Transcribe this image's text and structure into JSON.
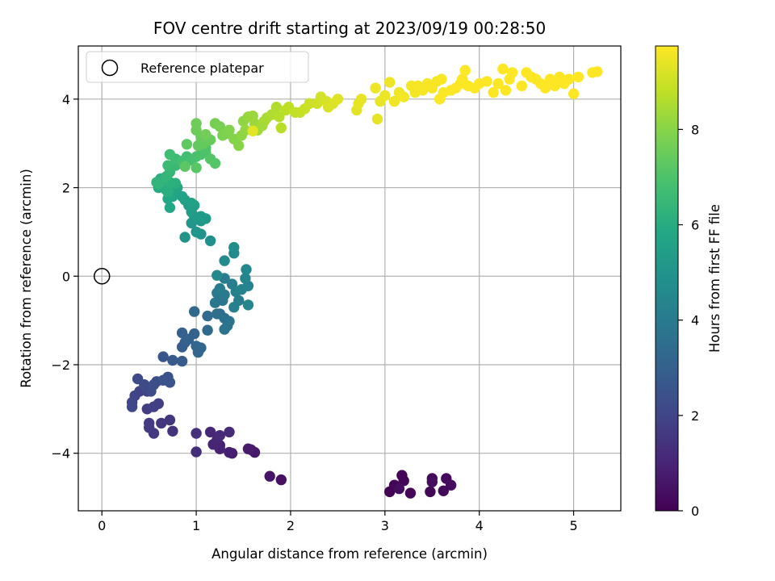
{
  "chart_data": {
    "type": "scatter",
    "title": "FOV centre drift starting at 2023/09/19 00:28:50",
    "xlabel": "Angular distance from reference (arcmin)",
    "ylabel": "Rotation from reference (arcmin)",
    "xlim": [
      -0.25,
      5.5
    ],
    "ylim": [
      -5.3,
      5.2
    ],
    "xticks": [
      0,
      1,
      2,
      3,
      4,
      5
    ],
    "yticks": [
      -4,
      -2,
      0,
      2,
      4
    ],
    "grid": true,
    "legend": {
      "placement": "top-left",
      "entries": [
        "Reference platepar"
      ]
    },
    "reference_point": {
      "x": 0,
      "y": 0,
      "marker": "open-circle"
    },
    "colorbar": {
      "label": "Hours from first FF file",
      "colormap": "viridis",
      "range": [
        0,
        9.75
      ],
      "ticks": [
        0,
        2,
        4,
        6,
        8
      ]
    },
    "points": [
      [
        3.05,
        -4.87,
        0.02
      ],
      [
        3.1,
        -4.72,
        0.05
      ],
      [
        3.18,
        -4.5,
        0.08
      ],
      [
        3.2,
        -4.62,
        0.11
      ],
      [
        3.27,
        -4.9,
        0.14
      ],
      [
        3.48,
        -4.87,
        0.17
      ],
      [
        3.5,
        -4.57,
        0.2
      ],
      [
        3.62,
        -4.85,
        0.23
      ],
      [
        3.65,
        -4.57,
        0.26
      ],
      [
        3.7,
        -4.72,
        0.29
      ],
      [
        3.15,
        -4.8,
        0.32
      ],
      [
        3.5,
        -4.65,
        0.35
      ],
      [
        1.9,
        -4.6,
        0.45
      ],
      [
        1.78,
        -4.52,
        0.55
      ],
      [
        1.62,
        -3.98,
        0.65
      ],
      [
        1.58,
        -3.92,
        0.7
      ],
      [
        1.55,
        -3.9,
        0.75
      ],
      [
        1.38,
        -4.0,
        0.8
      ],
      [
        1.35,
        -3.98,
        0.85
      ],
      [
        1.25,
        -3.82,
        0.9
      ],
      [
        1.25,
        -3.9,
        0.95
      ],
      [
        1.22,
        -3.7,
        1.0
      ],
      [
        1.18,
        -3.8,
        1.05
      ],
      [
        1.15,
        -3.52,
        1.1
      ],
      [
        1.25,
        -3.6,
        1.15
      ],
      [
        1.35,
        -3.52,
        1.2
      ],
      [
        1.0,
        -3.97,
        1.25
      ],
      [
        1.0,
        -3.55,
        1.3
      ],
      [
        0.75,
        -3.5,
        1.4
      ],
      [
        0.72,
        -3.25,
        1.5
      ],
      [
        0.63,
        -3.32,
        1.55
      ],
      [
        0.55,
        -3.55,
        1.6
      ],
      [
        0.5,
        -3.42,
        1.65
      ],
      [
        0.5,
        -3.32,
        1.7
      ],
      [
        0.48,
        -3.0,
        1.75
      ],
      [
        0.6,
        -2.88,
        1.8
      ],
      [
        0.55,
        -2.95,
        1.85
      ],
      [
        0.48,
        -2.6,
        1.9
      ],
      [
        0.4,
        -2.6,
        1.95
      ],
      [
        0.35,
        -2.7,
        2.0
      ],
      [
        0.32,
        -2.85,
        2.05
      ],
      [
        0.32,
        -2.95,
        2.1
      ],
      [
        0.38,
        -2.32,
        2.15
      ],
      [
        0.45,
        -2.45,
        2.2
      ],
      [
        0.52,
        -2.6,
        2.25
      ],
      [
        0.55,
        -2.45,
        2.3
      ],
      [
        0.58,
        -2.38,
        2.35
      ],
      [
        0.7,
        -2.28,
        2.4
      ],
      [
        0.72,
        -2.4,
        2.45
      ],
      [
        0.65,
        -2.35,
        2.5
      ],
      [
        0.65,
        -1.82,
        2.6
      ],
      [
        0.75,
        -1.9,
        2.7
      ],
      [
        0.85,
        -1.92,
        2.8
      ],
      [
        0.85,
        -1.6,
        2.9
      ],
      [
        0.88,
        -1.5,
        2.95
      ],
      [
        0.85,
        -1.28,
        3.0
      ],
      [
        0.92,
        -1.42,
        3.05
      ],
      [
        0.98,
        -1.3,
        3.1
      ],
      [
        1.0,
        -1.58,
        3.15
      ],
      [
        1.02,
        -1.72,
        3.2
      ],
      [
        1.05,
        -1.62,
        3.25
      ],
      [
        0.98,
        -0.8,
        3.3
      ],
      [
        1.12,
        -0.9,
        3.35
      ],
      [
        1.12,
        -1.22,
        3.4
      ],
      [
        1.25,
        -0.85,
        3.5
      ],
      [
        1.22,
        -0.85,
        3.55
      ],
      [
        1.3,
        -0.95,
        3.6
      ],
      [
        1.35,
        -1.02,
        3.65
      ],
      [
        1.33,
        -1.12,
        3.7
      ],
      [
        1.3,
        -1.2,
        3.75
      ],
      [
        1.28,
        -0.55,
        3.8
      ],
      [
        1.2,
        -0.6,
        3.85
      ],
      [
        1.22,
        -0.38,
        3.9
      ],
      [
        1.3,
        -0.42,
        3.95
      ],
      [
        1.25,
        -0.28,
        4.0
      ],
      [
        1.3,
        -0.05,
        4.05
      ],
      [
        1.38,
        -0.18,
        4.1
      ],
      [
        1.45,
        -0.55,
        4.15
      ],
      [
        1.4,
        -0.7,
        4.2
      ],
      [
        1.42,
        -0.35,
        4.25
      ],
      [
        1.48,
        -0.3,
        4.3
      ],
      [
        1.55,
        -0.22,
        4.35
      ],
      [
        1.52,
        -0.05,
        4.4
      ],
      [
        1.55,
        -0.65,
        4.45
      ],
      [
        1.53,
        0.15,
        4.5
      ],
      [
        1.22,
        0.02,
        4.55
      ],
      [
        1.3,
        0.35,
        4.6
      ],
      [
        1.4,
        0.52,
        4.65
      ],
      [
        1.4,
        0.65,
        4.7
      ],
      [
        1.15,
        0.8,
        4.8
      ],
      [
        1.05,
        0.95,
        4.9
      ],
      [
        0.88,
        0.88,
        4.95
      ],
      [
        1.0,
        1.0,
        5.0
      ],
      [
        0.95,
        1.2,
        5.1
      ],
      [
        1.05,
        1.25,
        5.15
      ],
      [
        1.1,
        1.3,
        5.2
      ],
      [
        0.98,
        1.35,
        5.25
      ],
      [
        1.05,
        1.35,
        5.3
      ],
      [
        0.95,
        1.45,
        5.35
      ],
      [
        0.92,
        1.6,
        5.4
      ],
      [
        0.88,
        1.72,
        5.45
      ],
      [
        0.98,
        1.6,
        5.5
      ],
      [
        0.95,
        1.65,
        5.55
      ],
      [
        0.85,
        1.8,
        5.6
      ],
      [
        0.78,
        1.92,
        5.65
      ],
      [
        0.8,
        2.0,
        5.7
      ],
      [
        0.75,
        1.8,
        5.75
      ],
      [
        0.72,
        1.55,
        5.8
      ],
      [
        0.7,
        1.75,
        5.85
      ],
      [
        0.68,
        1.95,
        5.9
      ],
      [
        0.65,
        2.05,
        5.95
      ],
      [
        0.6,
        2.0,
        6.0
      ],
      [
        0.62,
        2.2,
        6.05
      ],
      [
        0.7,
        1.9,
        6.1
      ],
      [
        0.78,
        2.1,
        6.15
      ],
      [
        0.72,
        2.12,
        6.2
      ],
      [
        0.65,
        2.15,
        6.25
      ],
      [
        0.6,
        2.08,
        6.3
      ],
      [
        0.58,
        2.12,
        6.35
      ],
      [
        0.68,
        2.25,
        6.4
      ],
      [
        0.72,
        2.35,
        6.45
      ],
      [
        0.78,
        2.5,
        6.5
      ],
      [
        0.82,
        2.55,
        6.55
      ],
      [
        0.7,
        2.5,
        6.6
      ],
      [
        0.78,
        2.65,
        6.65
      ],
      [
        0.72,
        2.75,
        6.7
      ],
      [
        0.9,
        2.7,
        6.75
      ],
      [
        0.85,
        2.6,
        6.8
      ],
      [
        0.95,
        2.62,
        6.85
      ],
      [
        1.0,
        2.7,
        6.9
      ],
      [
        1.05,
        2.75,
        6.95
      ],
      [
        1.1,
        2.8,
        7.0
      ],
      [
        1.1,
        2.9,
        7.05
      ],
      [
        1.15,
        2.65,
        7.1
      ],
      [
        1.2,
        2.55,
        7.15
      ],
      [
        1.0,
        2.45,
        7.2
      ],
      [
        0.88,
        2.48,
        7.25
      ],
      [
        0.9,
        2.98,
        7.3
      ],
      [
        1.02,
        2.95,
        7.35
      ],
      [
        1.08,
        3.0,
        7.4
      ],
      [
        1.15,
        3.08,
        7.45
      ],
      [
        1.05,
        3.15,
        7.5
      ],
      [
        1.0,
        3.3,
        7.55
      ],
      [
        1.0,
        3.45,
        7.6
      ],
      [
        1.1,
        3.2,
        7.65
      ],
      [
        1.2,
        3.45,
        7.7
      ],
      [
        1.25,
        3.38,
        7.75
      ],
      [
        1.28,
        3.18,
        7.8
      ],
      [
        1.32,
        3.22,
        7.85
      ],
      [
        1.35,
        3.3,
        7.9
      ],
      [
        1.4,
        3.1,
        7.95
      ],
      [
        1.45,
        2.95,
        8.0
      ],
      [
        1.48,
        3.18,
        8.05
      ],
      [
        1.5,
        3.5,
        8.1
      ],
      [
        1.52,
        3.3,
        8.15
      ],
      [
        1.55,
        3.6,
        8.2
      ],
      [
        1.6,
        3.62,
        8.25
      ],
      [
        1.62,
        3.45,
        8.3
      ],
      [
        1.65,
        3.3,
        8.35
      ],
      [
        1.7,
        3.4,
        8.4
      ],
      [
        1.72,
        3.5,
        8.45
      ],
      [
        1.75,
        3.58,
        8.5
      ],
      [
        1.8,
        3.65,
        8.55
      ],
      [
        1.85,
        3.82,
        8.6
      ],
      [
        1.88,
        3.6,
        8.65
      ],
      [
        1.9,
        3.35,
        8.7
      ],
      [
        1.95,
        3.75,
        8.75
      ],
      [
        1.98,
        3.82,
        8.8
      ],
      [
        2.05,
        3.7,
        8.85
      ],
      [
        2.1,
        3.7,
        8.9
      ],
      [
        2.15,
        3.78,
        8.95
      ],
      [
        2.2,
        3.9,
        9.0
      ],
      [
        2.28,
        3.9,
        9.05
      ],
      [
        2.32,
        4.05,
        9.1
      ],
      [
        2.38,
        3.95,
        9.15
      ],
      [
        2.4,
        3.82,
        9.2
      ],
      [
        2.45,
        3.9,
        9.25
      ],
      [
        2.5,
        4.0,
        9.3
      ],
      [
        1.6,
        3.28,
        9.35
      ],
      [
        2.7,
        3.75,
        9.35
      ],
      [
        2.72,
        3.9,
        9.38
      ],
      [
        2.75,
        4.0,
        9.4
      ],
      [
        2.92,
        3.55,
        9.42
      ],
      [
        2.95,
        3.95,
        9.45
      ],
      [
        3.0,
        4.08,
        9.48
      ],
      [
        2.9,
        4.25,
        9.5
      ],
      [
        3.05,
        4.38,
        9.52
      ],
      [
        3.1,
        3.95,
        9.55
      ],
      [
        3.15,
        4.15,
        9.57
      ],
      [
        3.2,
        4.05,
        9.6
      ],
      [
        3.28,
        4.3,
        9.62
      ],
      [
        3.32,
        4.15,
        9.63
      ],
      [
        3.35,
        4.3,
        9.64
      ],
      [
        3.4,
        4.2,
        9.65
      ],
      [
        3.45,
        4.35,
        9.66
      ],
      [
        3.5,
        4.25,
        9.67
      ],
      [
        3.55,
        4.4,
        9.68
      ],
      [
        3.6,
        4.45,
        9.69
      ],
      [
        3.62,
        4.15,
        9.7
      ],
      [
        3.58,
        4.0,
        9.7
      ],
      [
        3.7,
        4.2,
        9.71
      ],
      [
        3.75,
        4.25,
        9.72
      ],
      [
        3.8,
        4.35,
        9.72
      ],
      [
        3.82,
        4.45,
        9.73
      ],
      [
        3.85,
        4.65,
        9.73
      ],
      [
        3.88,
        4.3,
        9.74
      ],
      [
        3.95,
        4.25,
        9.74
      ],
      [
        4.0,
        4.35,
        9.75
      ],
      [
        4.08,
        4.4,
        9.75
      ],
      [
        4.15,
        4.15,
        9.75
      ],
      [
        4.2,
        4.35,
        9.75
      ],
      [
        4.25,
        4.68,
        9.75
      ],
      [
        4.28,
        4.2,
        9.75
      ],
      [
        4.32,
        4.45,
        9.75
      ],
      [
        4.35,
        4.6,
        9.75
      ],
      [
        4.45,
        4.3,
        9.75
      ],
      [
        4.5,
        4.6,
        9.75
      ],
      [
        4.55,
        4.5,
        9.75
      ],
      [
        4.6,
        4.45,
        9.75
      ],
      [
        4.65,
        4.35,
        9.75
      ],
      [
        4.7,
        4.25,
        9.75
      ],
      [
        4.75,
        4.45,
        9.75
      ],
      [
        4.8,
        4.3,
        9.75
      ],
      [
        4.85,
        4.5,
        9.75
      ],
      [
        4.9,
        4.35,
        9.75
      ],
      [
        4.95,
        4.45,
        9.75
      ],
      [
        5.0,
        4.12,
        9.75
      ],
      [
        5.05,
        4.5,
        9.75
      ],
      [
        5.2,
        4.6,
        9.75
      ],
      [
        5.25,
        4.62,
        9.75
      ]
    ]
  }
}
